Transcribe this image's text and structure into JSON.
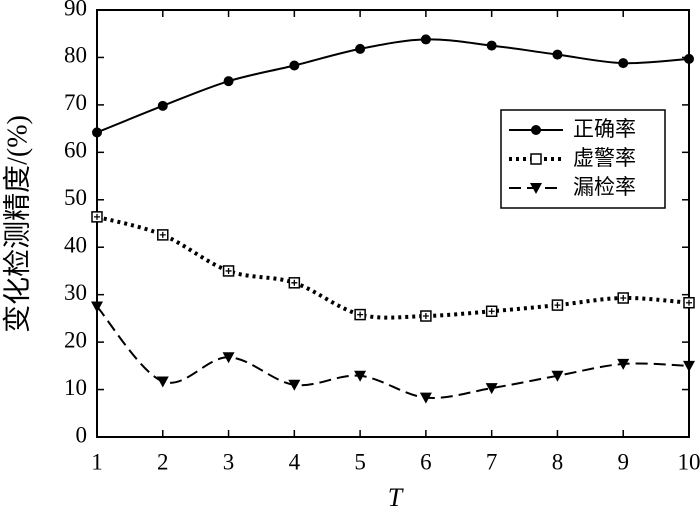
{
  "chart_data": {
    "type": "line",
    "x_label": "T",
    "y_label": "变化检测精度/(%)",
    "x": [
      1,
      2,
      3,
      4,
      5,
      6,
      7,
      8,
      9,
      10
    ],
    "xlim": [
      1,
      10
    ],
    "xticks": [
      1,
      2,
      3,
      4,
      5,
      6,
      7,
      8,
      9,
      10
    ],
    "ylim": [
      0,
      90
    ],
    "yticks": [
      0,
      10,
      20,
      30,
      40,
      50,
      60,
      70,
      80,
      90
    ],
    "legend": "upper right",
    "series": [
      {
        "name": "正确率",
        "color": "#000000",
        "line_style": "solid",
        "marker": "circle",
        "values": [
          64.2,
          69.8,
          75,
          78.3,
          81.8,
          83.8,
          82.5,
          80.6,
          78.8,
          79.7
        ]
      },
      {
        "name": "虚警率",
        "color": "#000000",
        "line_style": "dotted",
        "marker": "square-plus",
        "values": [
          46.4,
          42.6,
          35,
          32.5,
          25.8,
          25.5,
          26.5,
          27.8,
          29.3,
          28.3
        ]
      },
      {
        "name": "漏检率",
        "color": "#000000",
        "line_style": "dashed",
        "marker": "triangle-down",
        "values": [
          27.5,
          11.7,
          16.8,
          11,
          12.9,
          8.3,
          10.3,
          12.9,
          15.4,
          15
        ]
      }
    ]
  }
}
